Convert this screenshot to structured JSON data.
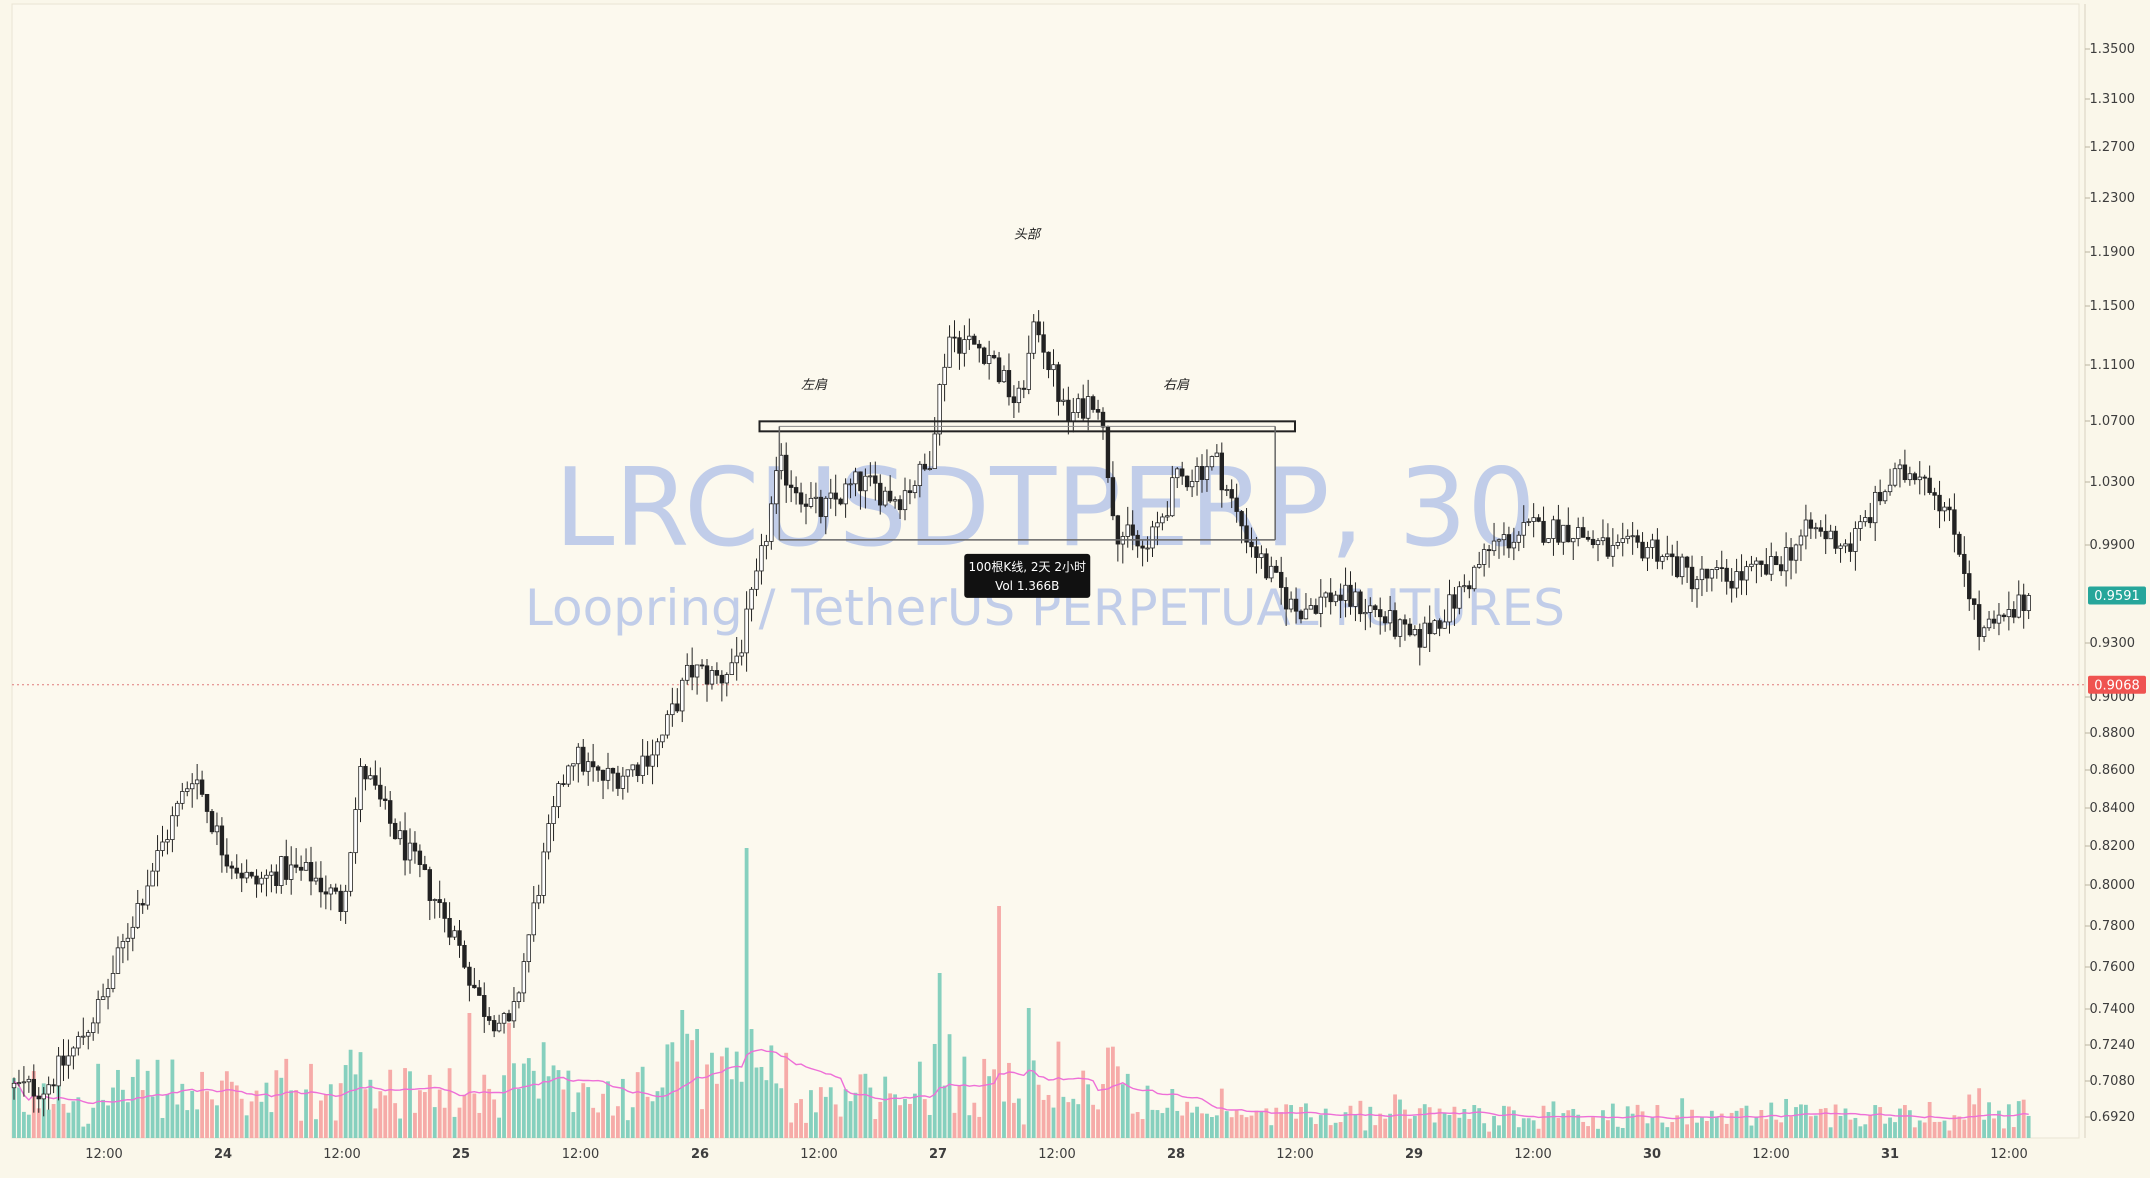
{
  "chart_data": {
    "type": "candlestick",
    "symbol": "LRCUSDTPERP, 30",
    "description": "Loopring / TetherUS PERPETUAL FUTURES",
    "y_ticks": [
      "1.3500",
      "1.3100",
      "1.2700",
      "1.2300",
      "1.1900",
      "1.1500",
      "1.1100",
      "1.0700",
      "1.0300",
      "0.9900",
      "0.9300",
      "0.9000",
      "0.8800",
      "0.8600",
      "0.8400",
      "0.8200",
      "0.8000",
      "0.7800",
      "0.7600",
      "0.7400",
      "0.7240",
      "0.7080",
      "0.6920"
    ],
    "x_ticks": [
      "12:00",
      "24",
      "12:00",
      "25",
      "12:00",
      "26",
      "12:00",
      "27",
      "12:00",
      "28",
      "12:00",
      "29",
      "12:00",
      "30",
      "12:00",
      "31",
      "12:00"
    ],
    "bold_x_ticks": [
      "24",
      "25",
      "26",
      "27",
      "28",
      "29",
      "30",
      "31"
    ],
    "current_price": "0.9591",
    "marked_price": "0.9068",
    "annotations": {
      "head": "头部",
      "left_shoulder": "左肩",
      "right_shoulder": "右肩"
    },
    "tooltip": {
      "line1": "100根K线, 2天 2小时",
      "line2": "Vol 1.366B"
    },
    "price_path": [
      {
        "date": "23 06:00",
        "price": 0.705
      },
      {
        "date": "23 09:00",
        "price": 0.722
      },
      {
        "date": "23 12:00",
        "price": 0.745
      },
      {
        "date": "23 15:00",
        "price": 0.785
      },
      {
        "date": "23 18:00",
        "price": 0.822
      },
      {
        "date": "23 21:00",
        "price": 0.86
      },
      {
        "date": "24 00:00",
        "price": 0.818
      },
      {
        "date": "24 03:00",
        "price": 0.8
      },
      {
        "date": "24 06:00",
        "price": 0.808
      },
      {
        "date": "24 09:00",
        "price": 0.805
      },
      {
        "date": "24 12:00",
        "price": 0.79
      },
      {
        "date": "24 14:00",
        "price": 0.862
      },
      {
        "date": "24 17:00",
        "price": 0.83
      },
      {
        "date": "24 20:00",
        "price": 0.805
      },
      {
        "date": "24 23:00",
        "price": 0.78
      },
      {
        "date": "25 02:00",
        "price": 0.742
      },
      {
        "date": "25 05:00",
        "price": 0.73
      },
      {
        "date": "25 07:00",
        "price": 0.78
      },
      {
        "date": "25 09:00",
        "price": 0.83
      },
      {
        "date": "25 11:00",
        "price": 0.87
      },
      {
        "date": "25 14:00",
        "price": 0.855
      },
      {
        "date": "25 17:00",
        "price": 0.86
      },
      {
        "date": "25 20:00",
        "price": 0.875
      },
      {
        "date": "25 23:00",
        "price": 0.915
      },
      {
        "date": "26 02:00",
        "price": 0.91
      },
      {
        "date": "26 04:00",
        "price": 0.925
      },
      {
        "date": "26 06:00",
        "price": 0.975
      },
      {
        "date": "26 08:00",
        "price": 1.04
      },
      {
        "date": "26 12:00",
        "price": 1.01
      },
      {
        "date": "26 16:00",
        "price": 1.03
      },
      {
        "date": "26 20:00",
        "price": 1.02
      },
      {
        "date": "26 23:00",
        "price": 1.04
      },
      {
        "date": "27 01:00",
        "price": 1.13
      },
      {
        "date": "27 05:00",
        "price": 1.12
      },
      {
        "date": "27 08:00",
        "price": 1.08
      },
      {
        "date": "27 10:00",
        "price": 1.14
      },
      {
        "date": "27 13:00",
        "price": 1.07
      },
      {
        "date": "27 16:00",
        "price": 1.09
      },
      {
        "date": "27 18:00",
        "price": 1.0
      },
      {
        "date": "27 21:00",
        "price": 0.985
      },
      {
        "date": "28 00:00",
        "price": 1.03
      },
      {
        "date": "28 04:00",
        "price": 1.045
      },
      {
        "date": "28 06:00",
        "price": 1.01
      },
      {
        "date": "28 09:00",
        "price": 0.975
      },
      {
        "date": "28 12:00",
        "price": 0.95
      },
      {
        "date": "28 16:00",
        "price": 0.96
      },
      {
        "date": "28 20:00",
        "price": 0.95
      },
      {
        "date": "29 00:00",
        "price": 0.93
      },
      {
        "date": "29 04:00",
        "price": 0.955
      },
      {
        "date": "29 08:00",
        "price": 0.99
      },
      {
        "date": "29 12:00",
        "price": 1.0
      },
      {
        "date": "29 16:00",
        "price": 1.0
      },
      {
        "date": "29 20:00",
        "price": 0.985
      },
      {
        "date": "30 00:00",
        "price": 0.99
      },
      {
        "date": "30 04:00",
        "price": 0.97
      },
      {
        "date": "30 08:00",
        "price": 0.97
      },
      {
        "date": "30 12:00",
        "price": 0.975
      },
      {
        "date": "30 16:00",
        "price": 1.0
      },
      {
        "date": "30 20:00",
        "price": 0.99
      },
      {
        "date": "31 00:00",
        "price": 1.03
      },
      {
        "date": "31 03:00",
        "price": 1.04
      },
      {
        "date": "31 05:00",
        "price": 1.02
      },
      {
        "date": "31 07:00",
        "price": 0.99
      },
      {
        "date": "31 09:00",
        "price": 0.935
      },
      {
        "date": "31 12:00",
        "price": 0.945
      },
      {
        "date": "31 14:00",
        "price": 0.9591
      }
    ]
  }
}
